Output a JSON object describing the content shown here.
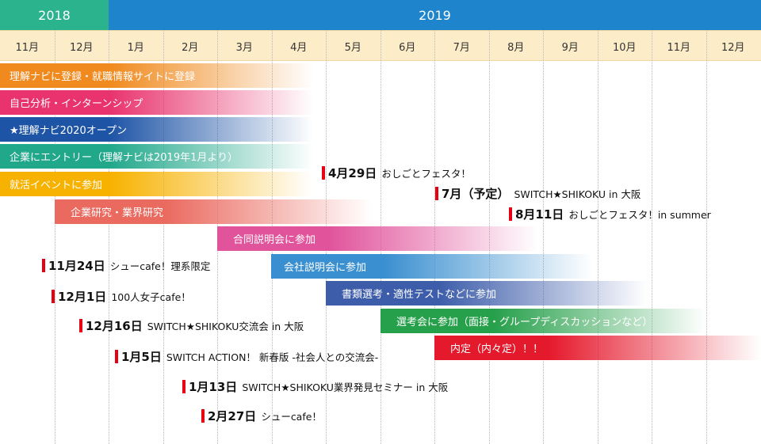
{
  "years": {
    "y2018": "2018",
    "y2019": "2019"
  },
  "months": [
    "11月",
    "12月",
    "1月",
    "2月",
    "3月",
    "4月",
    "5月",
    "6月",
    "7月",
    "8月",
    "9月",
    "10月",
    "11月",
    "12月"
  ],
  "bars": [
    {
      "label": "理解ナビに登録・就職情報サイトに登録",
      "color": "#f08a1e"
    },
    {
      "label": "自己分析・インターンシップ",
      "color": "#e8336e"
    },
    {
      "label": "★理解ナビ2020オープン",
      "color": "#1e54a6"
    },
    {
      "label": "企業にエントリー（理解ナビは2019年1月より）",
      "color": "#21a88b"
    },
    {
      "label": "就活イベントに参加",
      "color": "#f7b200"
    },
    {
      "label": "企業研究・業界研究",
      "color": "#ea6a5f"
    },
    {
      "label": "合同説明会に参加",
      "color": "#e1549c"
    },
    {
      "label": "会社説明会に参加",
      "color": "#3a8fd0"
    },
    {
      "label": "書類選考・適性テストなどに参加",
      "color": "#3d5daa"
    },
    {
      "label": "選考会に参加（面接・グループディスカッションなど）",
      "color": "#27a04b"
    },
    {
      "label": "内定（内々定）！！",
      "color": "#e5192c"
    }
  ],
  "events": [
    {
      "date": "4月29日",
      "name": "おしごとフェスタ！"
    },
    {
      "date": "7月（予定）",
      "name": "SWITCH★SHIKOKU in 大阪"
    },
    {
      "date": "8月11日",
      "name": "おしごとフェスタ！in summer"
    },
    {
      "date": "11月24日",
      "name": "シューcafe！理系限定"
    },
    {
      "date": "12月1日",
      "name": "100人女子cafe！"
    },
    {
      "date": "12月16日",
      "name": "SWITCH★SHIKOKU交流会 in 大阪"
    },
    {
      "date": "1月5日",
      "name": "SWITCH ACTION！ 新春版 -社会人との交流会-"
    },
    {
      "date": "1月13日",
      "name": "SWITCH★SHIKOKU業界発見セミナー in 大阪"
    },
    {
      "date": "2月27日",
      "name": "シューcafe！"
    }
  ]
}
